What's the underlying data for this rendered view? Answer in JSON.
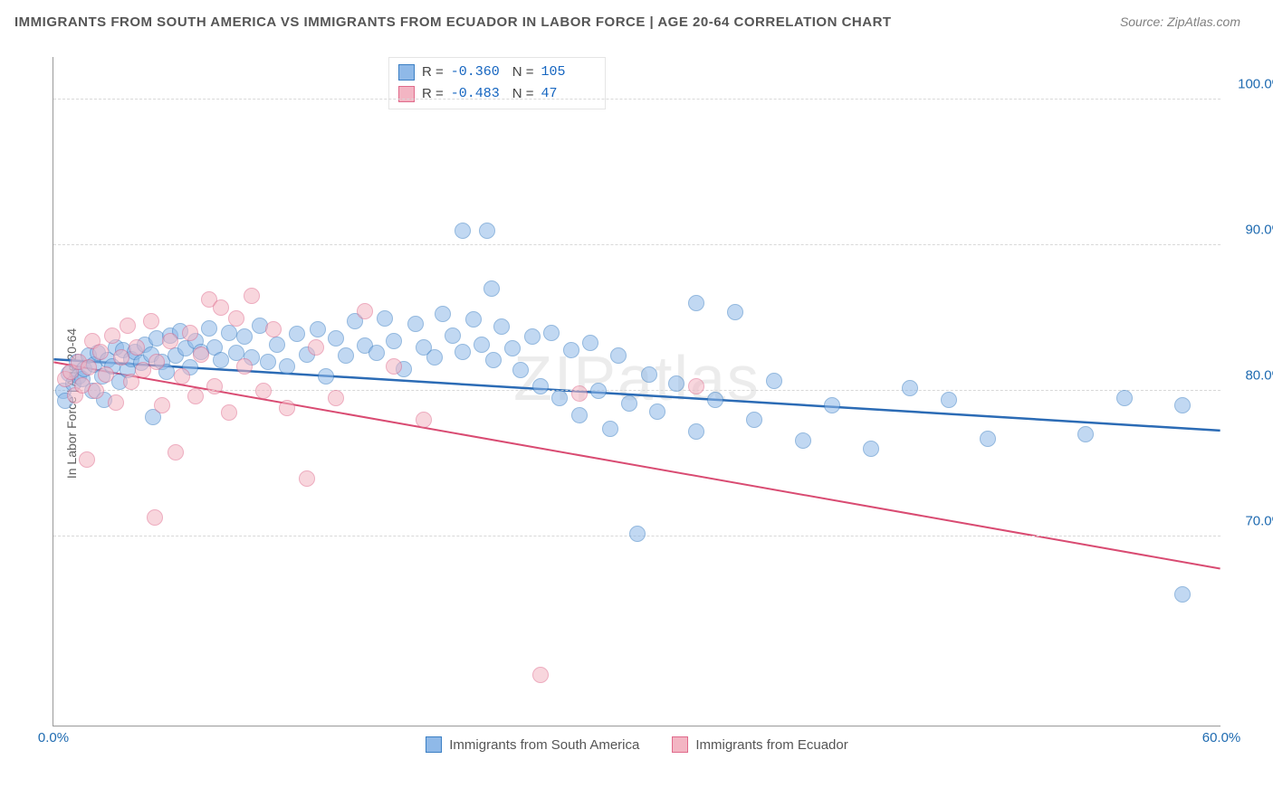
{
  "title": "IMMIGRANTS FROM SOUTH AMERICA VS IMMIGRANTS FROM ECUADOR IN LABOR FORCE | AGE 20-64 CORRELATION CHART",
  "title_fontsize": 15,
  "title_color": "#555555",
  "source_label": "Source: ZipAtlas.com",
  "source_color": "#808080",
  "source_fontsize": 14,
  "watermark": "ZIPatlas",
  "ylabel": "In Labor Force | Age 20-64",
  "axes": {
    "xlim": [
      0,
      60
    ],
    "ylim": [
      57,
      103
    ],
    "xticks": [
      {
        "v": 0,
        "label": "0.0%"
      },
      {
        "v": 60,
        "label": "60.0%"
      }
    ],
    "yticks": [
      {
        "v": 70,
        "label": "70.0%"
      },
      {
        "v": 80,
        "label": "80.0%"
      },
      {
        "v": 90,
        "label": "90.0%"
      },
      {
        "v": 100,
        "label": "100.0%"
      }
    ],
    "tick_color": "#1f6bb1",
    "grid_color": "#d8d8d8"
  },
  "marker": {
    "radius": 9,
    "opacity": 0.55,
    "stroke_opacity": 0.9
  },
  "series": [
    {
      "name": "Immigrants from South America",
      "fill": "#8fb9e8",
      "stroke": "#3b7fc4",
      "R": "-0.360",
      "N": "105",
      "trend": {
        "x1": 0,
        "y1": 82.2,
        "x2": 60,
        "y2": 77.3,
        "color": "#2b6bb5",
        "width": 2.5
      },
      "points": [
        [
          0.5,
          80.0
        ],
        [
          0.6,
          79.3
        ],
        [
          0.8,
          81.2
        ],
        [
          1.0,
          80.5
        ],
        [
          1.2,
          82.0
        ],
        [
          1.3,
          81.0
        ],
        [
          1.5,
          80.8
        ],
        [
          1.6,
          81.5
        ],
        [
          1.8,
          82.4
        ],
        [
          2.0,
          80.0
        ],
        [
          2.1,
          81.8
        ],
        [
          2.3,
          82.6
        ],
        [
          2.5,
          81.0
        ],
        [
          2.6,
          79.4
        ],
        [
          2.8,
          82.1
        ],
        [
          3.0,
          81.7
        ],
        [
          3.2,
          83.0
        ],
        [
          3.4,
          80.6
        ],
        [
          3.6,
          82.8
        ],
        [
          3.8,
          81.4
        ],
        [
          4.0,
          82.2
        ],
        [
          4.2,
          82.7
        ],
        [
          4.5,
          81.9
        ],
        [
          4.7,
          83.2
        ],
        [
          5.0,
          82.5
        ],
        [
          5.1,
          78.2
        ],
        [
          5.3,
          83.6
        ],
        [
          5.6,
          82.0
        ],
        [
          5.8,
          81.3
        ],
        [
          6.0,
          83.8
        ],
        [
          6.3,
          82.4
        ],
        [
          6.5,
          84.1
        ],
        [
          6.8,
          82.9
        ],
        [
          7.0,
          81.6
        ],
        [
          7.3,
          83.4
        ],
        [
          7.6,
          82.7
        ],
        [
          8.0,
          84.3
        ],
        [
          8.3,
          83.0
        ],
        [
          8.6,
          82.1
        ],
        [
          9.0,
          84.0
        ],
        [
          9.4,
          82.6
        ],
        [
          9.8,
          83.7
        ],
        [
          10.2,
          82.3
        ],
        [
          10.6,
          84.5
        ],
        [
          11.0,
          82.0
        ],
        [
          11.5,
          83.2
        ],
        [
          12.0,
          81.7
        ],
        [
          12.5,
          83.9
        ],
        [
          13.0,
          82.5
        ],
        [
          13.6,
          84.2
        ],
        [
          14.0,
          81.0
        ],
        [
          14.5,
          83.6
        ],
        [
          15.0,
          82.4
        ],
        [
          15.5,
          84.8
        ],
        [
          16.0,
          83.1
        ],
        [
          16.6,
          82.6
        ],
        [
          17.0,
          85.0
        ],
        [
          17.5,
          83.4
        ],
        [
          18.0,
          81.5
        ],
        [
          18.6,
          84.6
        ],
        [
          19.0,
          83.0
        ],
        [
          19.6,
          82.3
        ],
        [
          20.0,
          85.3
        ],
        [
          20.5,
          83.8
        ],
        [
          21.0,
          82.7
        ],
        [
          21.0,
          91.0
        ],
        [
          21.6,
          84.9
        ],
        [
          22.0,
          83.2
        ],
        [
          22.3,
          91.0
        ],
        [
          22.5,
          87.0
        ],
        [
          22.6,
          82.1
        ],
        [
          23.0,
          84.4
        ],
        [
          23.6,
          82.9
        ],
        [
          24.0,
          81.4
        ],
        [
          24.6,
          83.7
        ],
        [
          25.0,
          80.3
        ],
        [
          25.6,
          84.0
        ],
        [
          26.0,
          79.5
        ],
        [
          26.6,
          82.8
        ],
        [
          27.0,
          78.3
        ],
        [
          27.6,
          83.3
        ],
        [
          28.0,
          80.0
        ],
        [
          28.6,
          77.4
        ],
        [
          29.0,
          82.4
        ],
        [
          29.6,
          79.1
        ],
        [
          30.0,
          70.2
        ],
        [
          30.6,
          81.1
        ],
        [
          31.0,
          78.6
        ],
        [
          32.0,
          80.5
        ],
        [
          33.0,
          86.0
        ],
        [
          33.0,
          77.2
        ],
        [
          34.0,
          79.4
        ],
        [
          35.0,
          85.4
        ],
        [
          36.0,
          78.0
        ],
        [
          37.0,
          80.7
        ],
        [
          38.5,
          76.6
        ],
        [
          40.0,
          79.0
        ],
        [
          42.0,
          76.0
        ],
        [
          44.0,
          80.2
        ],
        [
          46.0,
          79.4
        ],
        [
          48.0,
          76.7
        ],
        [
          53.0,
          77.0
        ],
        [
          55.0,
          79.5
        ],
        [
          58.0,
          66.0
        ],
        [
          58.0,
          79.0
        ]
      ]
    },
    {
      "name": "Immigrants from Ecuador",
      "fill": "#f3b5c3",
      "stroke": "#e06a8b",
      "R": "-0.483",
      "N": "47",
      "trend": {
        "x1": 0,
        "y1": 82.0,
        "x2": 60,
        "y2": 67.8,
        "color": "#d94b72",
        "width": 2.0
      },
      "points": [
        [
          0.6,
          80.8
        ],
        [
          0.9,
          81.3
        ],
        [
          1.1,
          79.7
        ],
        [
          1.3,
          82.0
        ],
        [
          1.5,
          80.4
        ],
        [
          1.7,
          75.3
        ],
        [
          1.8,
          81.6
        ],
        [
          2.0,
          83.4
        ],
        [
          2.2,
          80.0
        ],
        [
          2.4,
          82.7
        ],
        [
          2.7,
          81.1
        ],
        [
          3.0,
          83.8
        ],
        [
          3.2,
          79.2
        ],
        [
          3.5,
          82.3
        ],
        [
          3.8,
          84.5
        ],
        [
          4.0,
          80.6
        ],
        [
          4.3,
          83.0
        ],
        [
          4.6,
          81.4
        ],
        [
          5.0,
          84.8
        ],
        [
          5.2,
          71.3
        ],
        [
          5.3,
          82.0
        ],
        [
          5.6,
          79.0
        ],
        [
          6.0,
          83.4
        ],
        [
          6.3,
          75.8
        ],
        [
          6.6,
          81.0
        ],
        [
          7.0,
          84.0
        ],
        [
          7.3,
          79.6
        ],
        [
          7.6,
          82.5
        ],
        [
          8.0,
          86.3
        ],
        [
          8.3,
          80.3
        ],
        [
          8.6,
          85.7
        ],
        [
          9.0,
          78.5
        ],
        [
          9.4,
          85.0
        ],
        [
          9.8,
          81.7
        ],
        [
          10.2,
          86.5
        ],
        [
          10.8,
          80.0
        ],
        [
          11.3,
          84.2
        ],
        [
          12.0,
          78.8
        ],
        [
          13.0,
          74.0
        ],
        [
          13.5,
          83.0
        ],
        [
          14.5,
          79.5
        ],
        [
          16.0,
          85.5
        ],
        [
          17.5,
          81.7
        ],
        [
          19.0,
          78.0
        ],
        [
          25.0,
          60.5
        ],
        [
          27.0,
          79.8
        ],
        [
          33.0,
          80.3
        ]
      ]
    }
  ],
  "legend_label": {
    "series1": "Immigrants from South America",
    "series2": "Immigrants from Ecuador"
  }
}
